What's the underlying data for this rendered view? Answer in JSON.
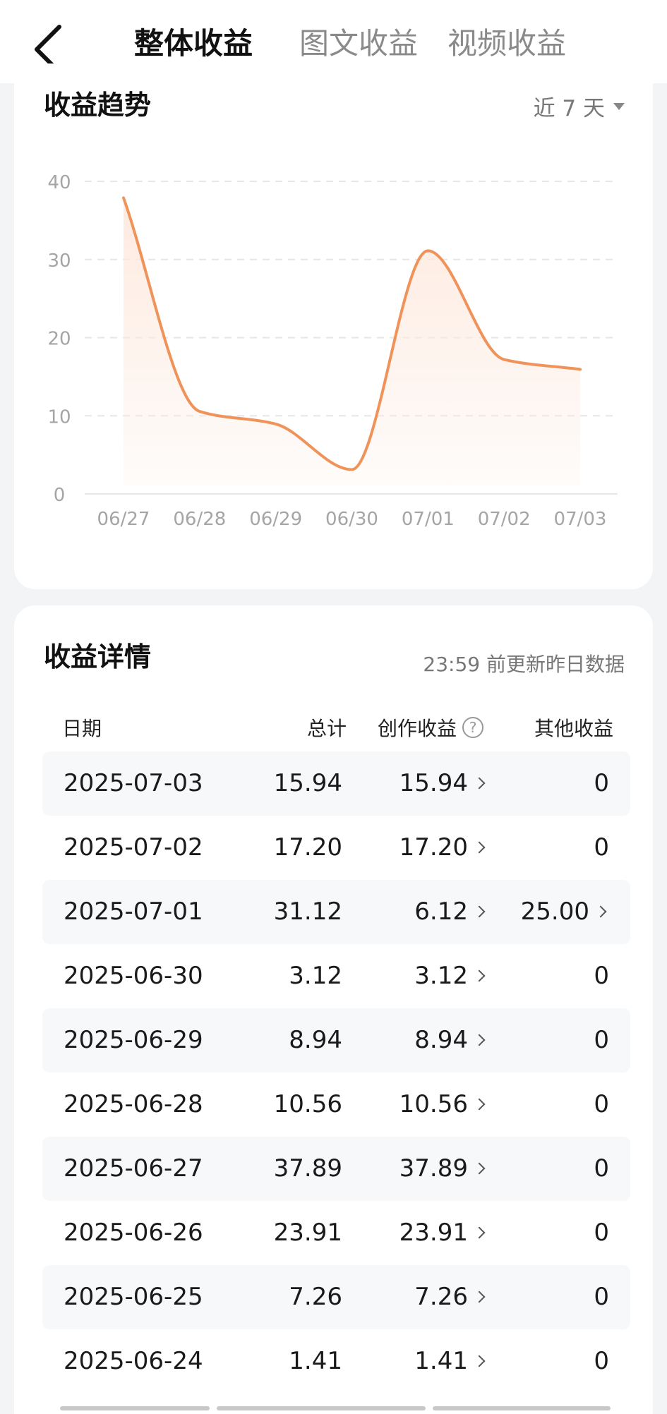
{
  "header": {
    "tabs": [
      {
        "label": "整体收益",
        "active": true
      },
      {
        "label": "图文收益",
        "active": false
      },
      {
        "label": "视频收益",
        "active": false
      }
    ]
  },
  "trend": {
    "title": "收益趋势",
    "range_label": "近 7 天"
  },
  "chart_data": {
    "type": "area",
    "title": "收益趋势",
    "xlabel": "",
    "ylabel": "",
    "categories": [
      "06/27",
      "06/28",
      "06/29",
      "06/30",
      "07/01",
      "07/02",
      "07/03"
    ],
    "values": [
      37.89,
      10.56,
      8.94,
      3.12,
      31.12,
      17.2,
      15.94
    ],
    "ylim": [
      0,
      40
    ],
    "yticks": [
      0,
      10,
      20,
      30,
      40
    ],
    "grid": true,
    "colors": {
      "line": "#f0935a",
      "fill": "#fde9de"
    }
  },
  "details": {
    "title": "收益详情",
    "update_note": "23:59 前更新昨日数据",
    "columns": {
      "date": "日期",
      "total": "总计",
      "creation": "创作收益",
      "other": "其他收益",
      "help_icon": "?"
    },
    "rows": [
      {
        "date": "2025-07-03",
        "total": "15.94",
        "creation": "15.94",
        "other": "0"
      },
      {
        "date": "2025-07-02",
        "total": "17.20",
        "creation": "17.20",
        "other": "0"
      },
      {
        "date": "2025-07-01",
        "total": "31.12",
        "creation": "6.12",
        "other": "25.00"
      },
      {
        "date": "2025-06-30",
        "total": "3.12",
        "creation": "3.12",
        "other": "0"
      },
      {
        "date": "2025-06-29",
        "total": "8.94",
        "creation": "8.94",
        "other": "0"
      },
      {
        "date": "2025-06-28",
        "total": "10.56",
        "creation": "10.56",
        "other": "0"
      },
      {
        "date": "2025-06-27",
        "total": "37.89",
        "creation": "37.89",
        "other": "0"
      },
      {
        "date": "2025-06-26",
        "total": "23.91",
        "creation": "23.91",
        "other": "0"
      },
      {
        "date": "2025-06-25",
        "total": "7.26",
        "creation": "7.26",
        "other": "0"
      },
      {
        "date": "2025-06-24",
        "total": "1.41",
        "creation": "1.41",
        "other": "0"
      }
    ]
  }
}
